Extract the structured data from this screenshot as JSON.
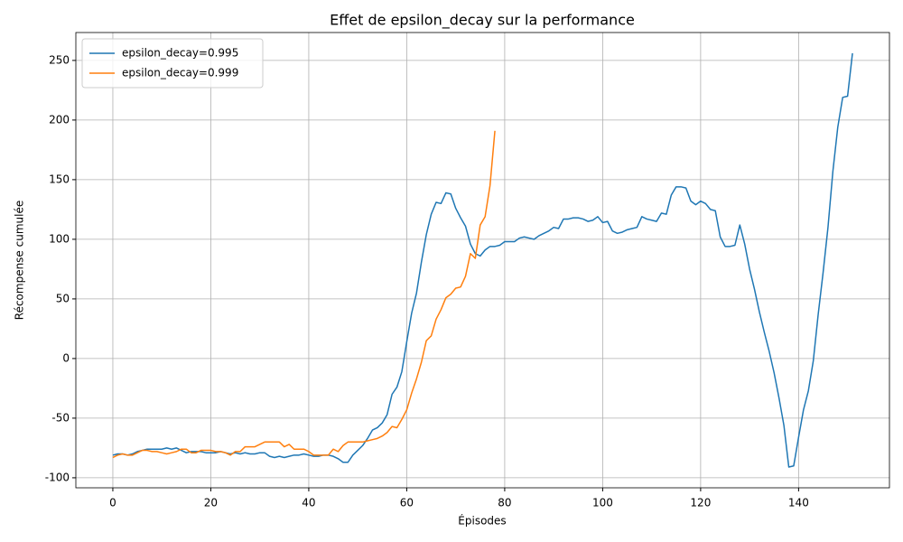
{
  "chart_data": {
    "type": "line",
    "title": "Effet de epsilon_decay sur la performance",
    "xlabel": "Épisodes",
    "ylabel": "Récompense cumulée",
    "x": [
      0,
      1,
      2,
      3,
      4,
      5,
      6,
      7,
      8,
      9,
      10,
      11,
      12,
      13,
      14,
      15,
      16,
      17,
      18,
      19,
      20,
      21,
      22,
      23,
      24,
      25,
      26,
      27,
      28,
      29,
      30,
      31,
      32,
      33,
      34,
      35,
      36,
      37,
      38,
      39,
      40,
      41,
      42,
      43,
      44,
      45,
      46,
      47,
      48,
      49,
      50,
      51,
      52,
      53,
      54,
      55,
      56,
      57,
      58,
      59,
      60,
      61,
      62,
      63,
      64,
      65,
      66,
      67,
      68,
      69,
      70,
      71,
      72,
      73,
      74,
      75,
      76,
      77,
      78,
      79,
      80,
      81,
      82,
      83,
      84,
      85,
      86,
      87,
      88,
      89,
      90,
      91,
      92,
      93,
      94,
      95,
      96,
      97,
      98,
      99,
      100,
      101,
      102,
      103,
      104,
      105,
      106,
      107,
      108,
      109,
      110,
      111,
      112,
      113,
      114,
      115,
      116,
      117,
      118,
      119,
      120,
      121,
      122,
      123,
      124,
      125,
      126,
      127,
      128,
      129,
      130,
      131,
      132,
      133,
      134,
      135,
      136,
      137,
      138,
      139,
      140,
      141,
      142,
      143,
      144,
      145,
      146,
      147,
      148,
      149,
      150,
      151
    ],
    "series": [
      {
        "name": "epsilon_decay=0.995",
        "color": "#1f77b4",
        "values": [
          -81,
          -80,
          -80,
          -81,
          -80,
          -78,
          -77,
          -76,
          -76,
          -76,
          -76,
          -75,
          -76,
          -75,
          -77,
          -79,
          -78,
          -78,
          -78,
          -79,
          -79,
          -79,
          -78,
          -79,
          -80,
          -79,
          -80,
          -79,
          -80,
          -80,
          -79,
          -79,
          -82,
          -83,
          -82,
          -83,
          -82,
          -81,
          -81,
          -80,
          -81,
          -82,
          -82,
          -81,
          -81,
          -82,
          -84,
          -87,
          -87,
          -81,
          -77,
          -73,
          -67,
          -60,
          -58,
          -54,
          -47,
          -30,
          -24,
          -11,
          14,
          38,
          55,
          81,
          104,
          121,
          131,
          130,
          139,
          138,
          126,
          118,
          111,
          96,
          88,
          86,
          91,
          94,
          94,
          95,
          98,
          98,
          98,
          101,
          102,
          101,
          100,
          103,
          105,
          107,
          110,
          109,
          117,
          117,
          118,
          118,
          117,
          115,
          116,
          119,
          114,
          115,
          107,
          105,
          106,
          108,
          109,
          110,
          119,
          117,
          116,
          115,
          122,
          121,
          137,
          144,
          144,
          143,
          132,
          129,
          132,
          130,
          125,
          124,
          102,
          94,
          94,
          95,
          112,
          96,
          75,
          58,
          39,
          22,
          6,
          -12,
          -33,
          -56,
          -91,
          -90,
          -66,
          -43,
          -27,
          -2,
          37,
          72,
          110,
          157,
          194,
          219,
          220,
          256
        ]
      },
      {
        "name": "epsilon_decay=0.999",
        "color": "#ff7f0e",
        "values": [
          -83,
          -81,
          -80,
          -81,
          -81,
          -79,
          -77,
          -77,
          -78,
          -78,
          -79,
          -80,
          -79,
          -78,
          -76,
          -76,
          -79,
          -79,
          -77,
          -77,
          -77,
          -78,
          -78,
          -79,
          -81,
          -78,
          -78,
          -74,
          -74,
          -74,
          -72,
          -70,
          -70,
          -70,
          -70,
          -74,
          -72,
          -76,
          -76,
          -76,
          -78,
          -81,
          -81,
          -81,
          -81,
          -76,
          -78,
          -73,
          -70,
          -70,
          -70,
          -70,
          -69,
          -68,
          -67,
          -65,
          -62,
          -57,
          -58,
          -51,
          -43,
          -29,
          -17,
          -3,
          15,
          19,
          33,
          41,
          51,
          54,
          59,
          60,
          69,
          88,
          84,
          112,
          119,
          145,
          191,
          null,
          null,
          null,
          null,
          null,
          null,
          null,
          null,
          null,
          null,
          null,
          null,
          null,
          null,
          null,
          null,
          null,
          null,
          null,
          null,
          null,
          null,
          null,
          null,
          null,
          null,
          null,
          null,
          null,
          null,
          null,
          null,
          null,
          null,
          null,
          null,
          null,
          null,
          null,
          null,
          null,
          null,
          null,
          null,
          null,
          null,
          null,
          null,
          null,
          null,
          null,
          null,
          null,
          null,
          null,
          null,
          null,
          null,
          null,
          null,
          null,
          null,
          null,
          null,
          null,
          null,
          null,
          null,
          null,
          null,
          null,
          null,
          null
        ]
      }
    ],
    "xlim": [
      -7.55,
      158.55
    ],
    "xticks": [
      0,
      20,
      40,
      60,
      80,
      100,
      120,
      140
    ],
    "ylim": [
      -108.4,
      273.4
    ],
    "yticks": [
      -100,
      -50,
      0,
      50,
      100,
      150,
      200,
      250
    ],
    "grid": true,
    "legend": "upper left"
  }
}
